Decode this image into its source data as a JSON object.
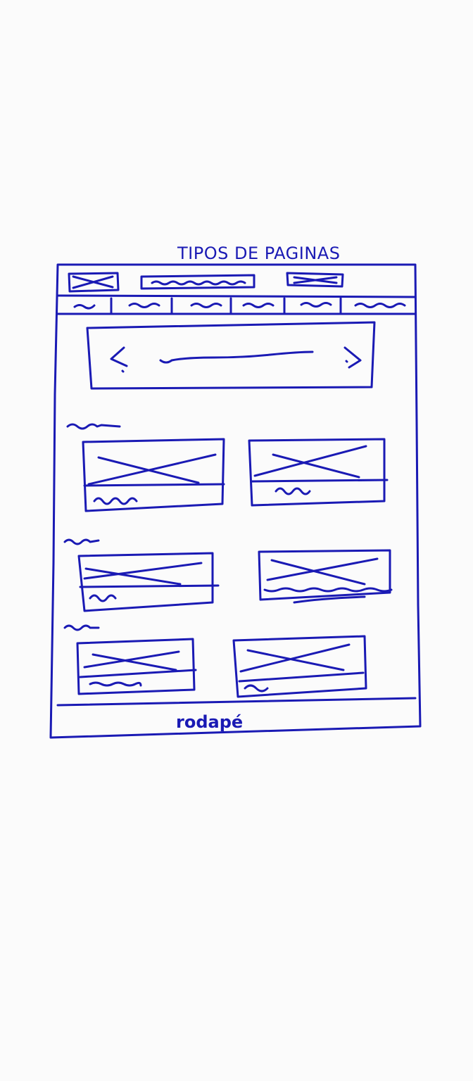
{
  "page_title": "TIPOS DE PAGINAS",
  "footer_label": "rodapé",
  "ink_color": "#1a1ab4",
  "header": {
    "logo_placeholder": "image-placeholder",
    "search_placeholder": "squiggle-text",
    "action_placeholder": "image-placeholder"
  },
  "nav": {
    "tab_count": 6
  },
  "banner": {
    "prev_icon": "chevron-left-icon",
    "next_icon": "chevron-right-icon"
  },
  "sections": [
    {
      "heading": "squiggle-text",
      "cards": 2
    },
    {
      "heading": "squiggle-text",
      "cards": 2
    },
    {
      "heading": "squiggle-text",
      "cards": 2
    }
  ]
}
